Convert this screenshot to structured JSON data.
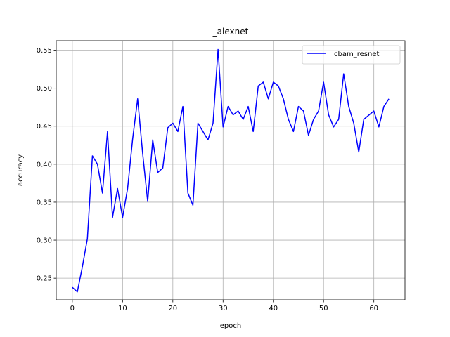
{
  "chart_data": {
    "type": "line",
    "title": "_alexnet",
    "xlabel": "epoch",
    "ylabel": "accuracy",
    "xlim": [
      -3.2,
      66.2
    ],
    "ylim": [
      0.2215,
      0.5625
    ],
    "xticks": [
      0,
      10,
      20,
      30,
      40,
      50,
      60
    ],
    "yticks": [
      0.25,
      0.3,
      0.35,
      0.4,
      0.45,
      0.5,
      0.55
    ],
    "ytick_labels": [
      "0.25",
      "0.30",
      "0.35",
      "0.40",
      "0.45",
      "0.50",
      "0.55"
    ],
    "grid": true,
    "legend_position": "top-right",
    "series": [
      {
        "name": "cbam_resnet",
        "color": "#0000ff",
        "x": [
          0,
          1,
          2,
          3,
          4,
          5,
          6,
          7,
          8,
          9,
          10,
          11,
          12,
          13,
          14,
          15,
          16,
          17,
          18,
          19,
          20,
          21,
          22,
          23,
          24,
          25,
          26,
          27,
          28,
          29,
          30,
          31,
          32,
          33,
          34,
          35,
          36,
          37,
          38,
          39,
          40,
          41,
          42,
          43,
          44,
          45,
          46,
          47,
          48,
          49,
          50,
          51,
          52,
          53,
          54,
          55,
          56,
          57,
          58,
          60,
          61,
          62,
          63
        ],
        "y": [
          0.238,
          0.232,
          0.265,
          0.302,
          0.411,
          0.4,
          0.362,
          0.443,
          0.33,
          0.368,
          0.33,
          0.368,
          0.433,
          0.486,
          0.414,
          0.351,
          0.432,
          0.389,
          0.395,
          0.448,
          0.454,
          0.443,
          0.476,
          0.362,
          0.346,
          0.454,
          0.443,
          0.432,
          0.454,
          0.551,
          0.449,
          0.476,
          0.465,
          0.47,
          0.459,
          0.476,
          0.443,
          0.503,
          0.508,
          0.486,
          0.508,
          0.503,
          0.486,
          0.459,
          0.443,
          0.476,
          0.47,
          0.438,
          0.459,
          0.47,
          0.508,
          0.465,
          0.449,
          0.459,
          0.519,
          0.476,
          0.454,
          0.416,
          0.459,
          0.47,
          0.449,
          0.476,
          0.486
        ]
      }
    ]
  }
}
